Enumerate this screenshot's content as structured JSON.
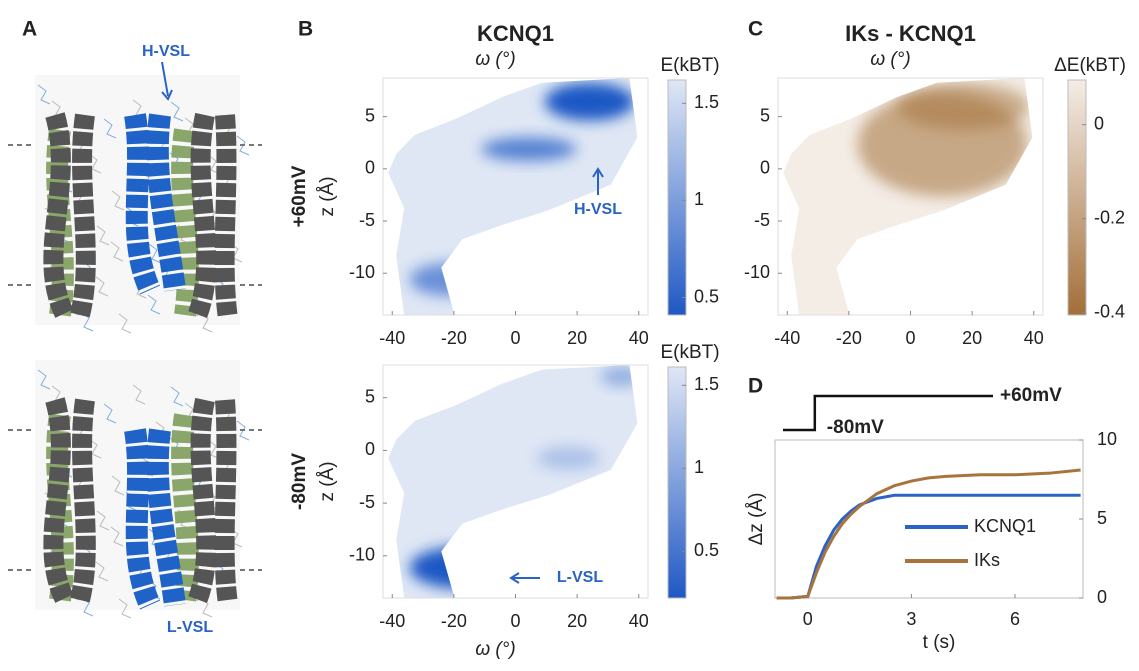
{
  "panel_labels": [
    "A",
    "B",
    "C",
    "D"
  ],
  "structure_labels": {
    "top": "H-VSL",
    "bottom": "L-VSL"
  },
  "chart_data": [
    {
      "type": "heatmap",
      "title": "KCNQ1",
      "xlabel": "ω (°)",
      "ylabel": "z (Å)",
      "row_label": "+60mV",
      "annotation": "H-VSL",
      "colorbar_label": "E(kBT)",
      "xlim": [
        -43,
        43
      ],
      "ylim": [
        -14,
        8.7
      ],
      "xticks": [
        -40,
        -20,
        0,
        20,
        40
      ],
      "yticks": [
        5,
        0,
        -5,
        -10
      ],
      "clim": [
        0.41,
        1.62
      ],
      "cticks": [
        1.5,
        1,
        0.5
      ],
      "colormap": [
        "#1f58c4",
        "#dfe7f5"
      ]
    },
    {
      "type": "heatmap",
      "xlabel": "ω (°)",
      "ylabel": "z (Å)",
      "row_label": "-80mV",
      "annotation": "L-VSL",
      "colorbar_label": "E(kBT)",
      "xlim": [
        -43,
        43
      ],
      "ylim": [
        -14,
        8.1
      ],
      "xticks": [
        -40,
        -20,
        0,
        20,
        40
      ],
      "yticks": [
        5,
        0,
        -5,
        -10
      ],
      "clim": [
        0.22,
        1.61
      ],
      "cticks": [
        1.5,
        1,
        0.5
      ],
      "colormap": [
        "#1f58c4",
        "#dfe7f5"
      ]
    },
    {
      "type": "heatmap",
      "title": "IKs - KCNQ1",
      "xlabel": "ω (°)",
      "colorbar_label": "ΔE(kBT)",
      "xlim": [
        -43,
        43
      ],
      "ylim": [
        -14,
        8.7
      ],
      "xticks": [
        -40,
        -20,
        0,
        20,
        40
      ],
      "yticks": [
        5,
        0,
        -5,
        -10
      ],
      "clim": [
        -0.405,
        0.095
      ],
      "cticks": [
        0,
        -0.2,
        -0.4
      ],
      "colormap": [
        "#a26f38",
        "#f4ede6"
      ]
    },
    {
      "type": "line",
      "xlabel": "t (s)",
      "ylabel": "Δz (Å)",
      "step_labels": [
        "-80mV",
        "+60mV"
      ],
      "x": [
        -0.9,
        -0.5,
        0,
        0.25,
        0.5,
        0.75,
        1,
        1.25,
        1.5,
        2,
        2.5,
        3,
        3.5,
        4,
        5,
        6,
        7,
        7.9
      ],
      "xlim": [
        -0.95,
        7.97
      ],
      "xticks": [
        0,
        3,
        6
      ],
      "y2lim": [
        0,
        10
      ],
      "y2ticks": [
        0,
        5,
        10
      ],
      "legend": "lower right",
      "series": [
        {
          "name": "KCNQ1",
          "color": "#2a63c6",
          "axis": "y2",
          "values": [
            0,
            0,
            0.1,
            2,
            3.3,
            4.3,
            5,
            5.5,
            5.9,
            6.3,
            6.5,
            6.5,
            6.5,
            6.5,
            6.5,
            6.5,
            6.5,
            6.5
          ]
        },
        {
          "name": "IKs",
          "color": "#a8743e",
          "axis": "y2",
          "values": [
            0,
            0,
            0.1,
            1.6,
            2.9,
            3.9,
            4.7,
            5.3,
            5.8,
            6.6,
            7.1,
            7.4,
            7.6,
            7.7,
            7.8,
            7.8,
            7.9,
            8.1
          ]
        }
      ]
    }
  ]
}
